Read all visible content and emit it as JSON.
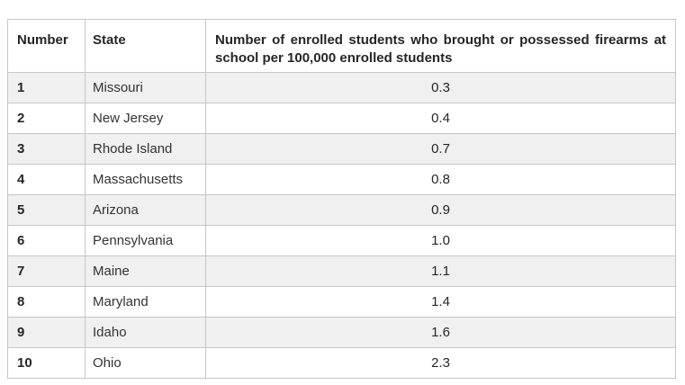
{
  "table": {
    "columns": [
      "Number",
      "State",
      "Number of enrolled students who brought or possessed firearms at school per 100,000 enrolled students"
    ],
    "rows": [
      {
        "number": "1",
        "state": "Missouri",
        "rate": "0.3"
      },
      {
        "number": "2",
        "state": "New Jersey",
        "rate": "0.4"
      },
      {
        "number": "3",
        "state": "Rhode Island",
        "rate": "0.7"
      },
      {
        "number": "4",
        "state": "Massachusetts",
        "rate": "0.8"
      },
      {
        "number": "5",
        "state": "Arizona",
        "rate": "0.9"
      },
      {
        "number": "6",
        "state": "Pennsylvania",
        "rate": "1.0"
      },
      {
        "number": "7",
        "state": "Maine",
        "rate": "1.1"
      },
      {
        "number": "8",
        "state": "Maryland",
        "rate": "1.4"
      },
      {
        "number": "9",
        "state": "Idaho",
        "rate": "1.6"
      },
      {
        "number": "10",
        "state": "Ohio",
        "rate": "2.3"
      }
    ]
  },
  "colors": {
    "stripe_row": "#f0f0f0",
    "plain_row": "#ffffff",
    "border_inner": "#c6c6c6",
    "border_outer": "#7f7f7f",
    "text": "#262626"
  },
  "chart_data": {
    "type": "table",
    "title": "",
    "columns": [
      "Number",
      "State",
      "Number of enrolled students who brought or possessed firearms at school per 100,000 enrolled students"
    ],
    "rows": [
      [
        1,
        "Missouri",
        0.3
      ],
      [
        2,
        "New Jersey",
        0.4
      ],
      [
        3,
        "Rhode Island",
        0.7
      ],
      [
        4,
        "Massachusetts",
        0.8
      ],
      [
        5,
        "Arizona",
        0.9
      ],
      [
        6,
        "Pennsylvania",
        1.0
      ],
      [
        7,
        "Maine",
        1.1
      ],
      [
        8,
        "Maryland",
        1.4
      ],
      [
        9,
        "Idaho",
        1.6
      ],
      [
        10,
        "Ohio",
        2.3
      ]
    ],
    "layout_hints": {
      "striped_rows": true,
      "number_column_bold": true,
      "rate_column_align": "center",
      "header_align": "justify"
    }
  }
}
